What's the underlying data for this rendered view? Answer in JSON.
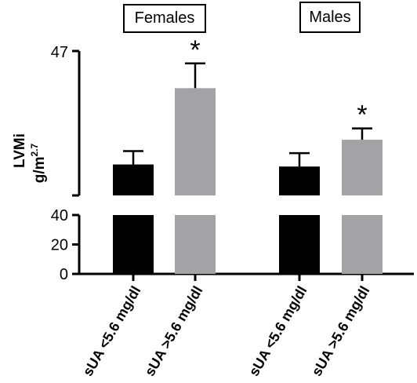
{
  "chart_data": {
    "type": "bar",
    "axis": {
      "ylabel_main": "LVMi",
      "ylabel_unit_base": "g/m",
      "ylabel_unit_exp": "2.7",
      "upper_top_tick": "47",
      "lower_ticks": [
        "0",
        "20",
        "40"
      ],
      "broken_axis": true,
      "upper_range": [
        40,
        47
      ],
      "lower_range": [
        0,
        40
      ]
    },
    "groups": [
      {
        "name": "Females",
        "bars": [
          {
            "category": "sUA <5.6 mg/dl",
            "value": 41.5,
            "error": 0.65,
            "color": "#000000",
            "significance": ""
          },
          {
            "category": "sUA >5.6 mg/dl",
            "value": 45.2,
            "error": 1.2,
            "color": "#a3a3a5",
            "significance": "*"
          }
        ]
      },
      {
        "name": "Males",
        "bars": [
          {
            "category": "sUA <5.6 mg/dl",
            "value": 41.4,
            "error": 0.65,
            "color": "#000000",
            "significance": ""
          },
          {
            "category": "sUA >5.6 mg/dl",
            "value": 42.7,
            "error": 0.55,
            "color": "#a3a3a5",
            "significance": "*"
          }
        ]
      }
    ]
  }
}
